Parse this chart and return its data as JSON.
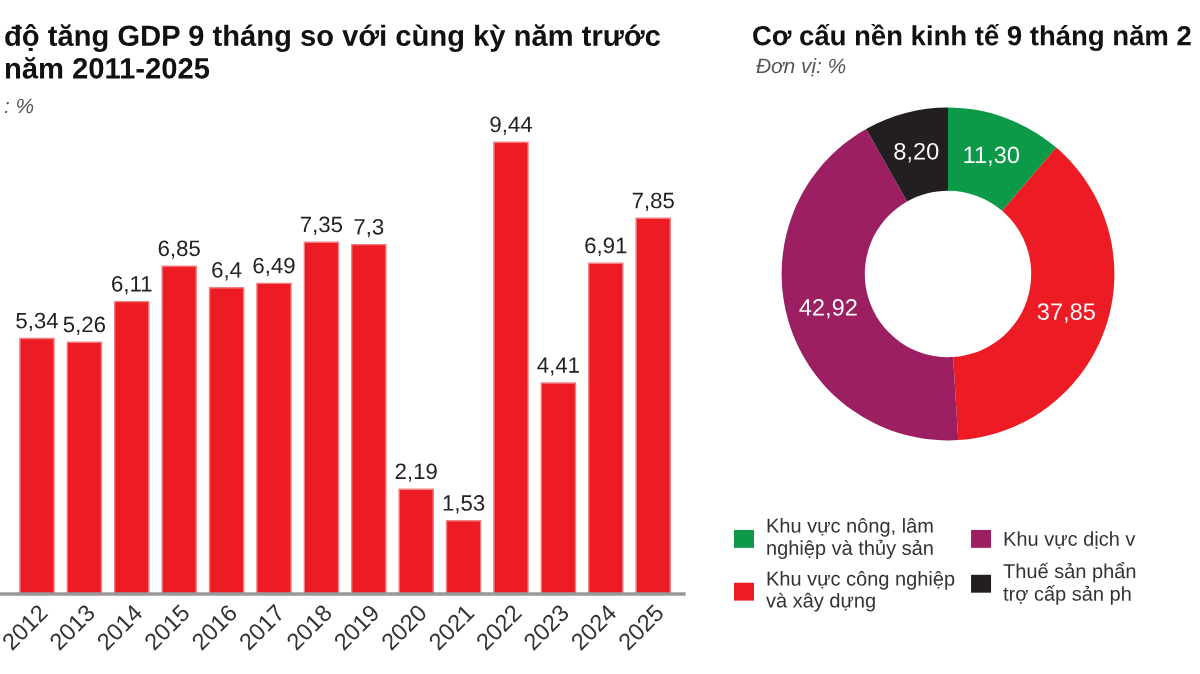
{
  "chart_data": [
    {
      "type": "bar",
      "title": "độ tăng GDP 9 tháng so với cùng kỳ năm trước\nnăm 2011-2025",
      "subtitle": ": %",
      "categories": [
        "2012",
        "2013",
        "2014",
        "2015",
        "2016",
        "2017",
        "2018",
        "2019",
        "2020",
        "2021",
        "2022",
        "2023",
        "2024",
        "2025"
      ],
      "values": [
        5.34,
        5.26,
        6.11,
        6.85,
        6.4,
        6.49,
        7.35,
        7.3,
        2.19,
        1.53,
        9.44,
        4.41,
        6.91,
        7.85
      ],
      "value_labels": [
        "5,34",
        "5,26",
        "6,11",
        "6,85",
        "6,4",
        "6,49",
        "7,35",
        "7,3",
        "2,19",
        "1,53",
        "9,44",
        "4,41",
        "6,91",
        "7,85"
      ],
      "color": "#ed1c24"
    },
    {
      "type": "donut",
      "title": "Cơ cấu nền kinh tế 9 tháng năm 2",
      "subtitle": "Đơn vị: %",
      "categories": [
        "Khu vực nông, lâm\nnghiệp và thủy sản",
        "Khu vực công nghiệp\nvà xây dựng",
        "Khu vực dịch v",
        "Thuế sản phẩn\ntrợ cấp sản ph"
      ],
      "values": [
        11.3,
        37.85,
        42.92,
        8.2
      ],
      "value_labels": [
        "11,30",
        "37,85",
        "42,92",
        "8,20"
      ],
      "colors": [
        "#0d9a48",
        "#ed1c24",
        "#9b1f61",
        "#231f20"
      ],
      "legend": "bottom"
    }
  ]
}
